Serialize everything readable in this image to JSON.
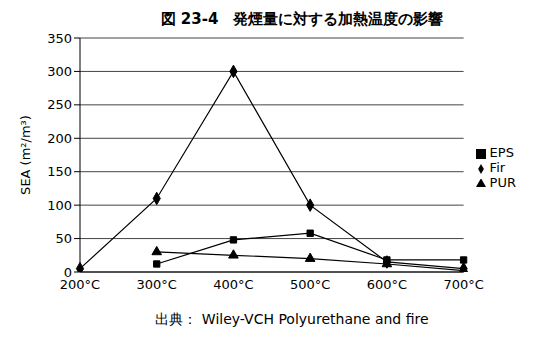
{
  "chart_data": {
    "type": "line",
    "title": "図 23-4　発煙量に対する加熱温度の影響",
    "y_label": "SEA (m²/m³)",
    "source": "出典： Wiley-VCH Polyurethane and fire",
    "categories": [
      "200°C",
      "300°C",
      "400°C",
      "500°C",
      "600°C",
      "700°C"
    ],
    "series": [
      {
        "name": "Fir",
        "color": "#000000",
        "marker": "diamond",
        "values": [
          5,
          110,
          300,
          100,
          15,
          5
        ]
      },
      {
        "name": "EPS",
        "color": "#000000",
        "marker": "square",
        "values": [
          null,
          12,
          48,
          58,
          18,
          18
        ]
      },
      {
        "name": "PUR",
        "color": "#000000",
        "marker": "triangle",
        "values": [
          null,
          30,
          25,
          20,
          12,
          2
        ]
      }
    ],
    "ylim": [
      0,
      350
    ],
    "yticks": [
      0,
      50,
      100,
      150,
      200,
      250,
      300,
      350
    ],
    "grid": true,
    "legend": "right"
  }
}
